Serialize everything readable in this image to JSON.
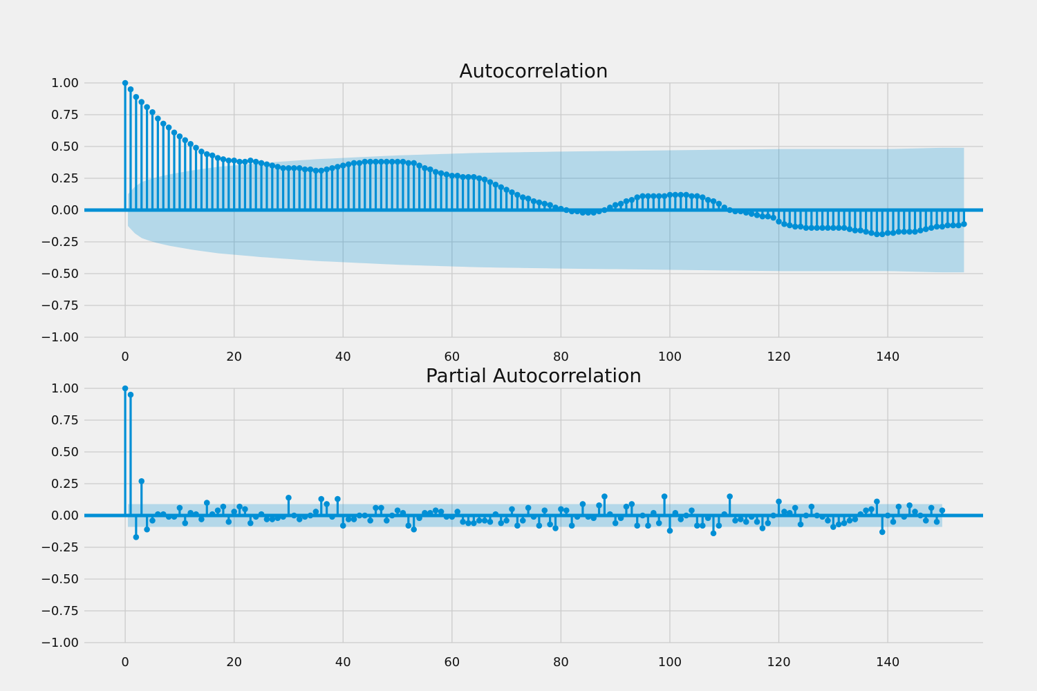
{
  "chart_data": [
    {
      "type": "stem",
      "title": "Autocorrelation",
      "xlabel": "",
      "ylabel": "",
      "xlim": [
        -7.5,
        157.5
      ],
      "ylim": [
        -1.0,
        1.0
      ],
      "x_ticks": [
        0,
        20,
        40,
        60,
        80,
        100,
        120,
        140
      ],
      "x_tick_labels": [
        "0",
        "20",
        "40",
        "60",
        "80",
        "100",
        "120",
        "140"
      ],
      "y_ticks": [
        1.0,
        0.75,
        0.5,
        0.25,
        0.0,
        -0.25,
        -0.5,
        -0.75,
        -1.0
      ],
      "y_tick_labels": [
        "1.00",
        "0.75",
        "0.50",
        "0.25",
        "0.00",
        "−0.25",
        "−0.50",
        "−0.75",
        "−1.00"
      ],
      "grid": true,
      "series": [
        {
          "lags": [
            0,
            150
          ],
          "values": [
            1.0,
            0.95,
            0.89,
            0.85,
            0.81,
            0.77,
            0.72,
            0.68,
            0.65,
            0.61,
            0.58,
            0.55,
            0.52,
            0.49,
            0.46,
            0.44,
            0.43,
            0.41,
            0.4,
            0.39,
            0.39,
            0.38,
            0.38,
            0.39,
            0.38,
            0.37,
            0.36,
            0.35,
            0.34,
            0.33,
            0.33,
            0.33,
            0.33,
            0.32,
            0.32,
            0.31,
            0.31,
            0.32,
            0.33,
            0.34,
            0.35,
            0.36,
            0.37,
            0.37,
            0.38,
            0.38,
            0.38,
            0.38,
            0.38,
            0.38,
            0.38,
            0.38,
            0.37,
            0.37,
            0.35,
            0.33,
            0.32,
            0.3,
            0.29,
            0.28,
            0.27,
            0.27,
            0.26,
            0.26,
            0.26,
            0.25,
            0.24,
            0.22,
            0.2,
            0.18,
            0.16,
            0.14,
            0.12,
            0.1,
            0.09,
            0.07,
            0.06,
            0.05,
            0.04,
            0.02,
            0.01,
            0.0,
            -0.01,
            -0.01,
            -0.02,
            -0.02,
            -0.02,
            -0.01,
            0.0,
            0.02,
            0.04,
            0.05,
            0.07,
            0.08,
            0.1,
            0.11,
            0.11,
            0.11,
            0.11,
            0.11,
            0.12,
            0.12,
            0.12,
            0.12,
            0.11,
            0.11,
            0.1,
            0.08,
            0.07,
            0.05,
            0.02,
            0.0,
            -0.01,
            -0.01,
            -0.02,
            -0.03,
            -0.04,
            -0.05,
            -0.05,
            -0.06,
            -0.09,
            -0.11,
            -0.12,
            -0.13,
            -0.13,
            -0.14,
            -0.14,
            -0.14,
            -0.14,
            -0.14,
            -0.14,
            -0.14,
            -0.14,
            -0.15,
            -0.16,
            -0.16,
            -0.17,
            -0.18,
            -0.19,
            -0.19,
            -0.18,
            -0.18,
            -0.17,
            -0.17,
            -0.17,
            -0.17,
            -0.16,
            -0.15,
            -0.14,
            -0.13,
            -0.13,
            -0.12,
            -0.12,
            -0.12,
            -0.11
          ]
        }
      ],
      "confidence_band": {
        "lags": [
          0,
          1,
          2,
          3,
          5,
          8,
          12,
          17,
          25,
          35,
          50,
          65,
          80,
          100,
          120,
          140,
          150
        ],
        "upper": [
          0.09,
          0.16,
          0.19,
          0.22,
          0.25,
          0.28,
          0.31,
          0.34,
          0.37,
          0.4,
          0.43,
          0.45,
          0.46,
          0.47,
          0.48,
          0.48,
          0.49
        ]
      }
    },
    {
      "type": "stem",
      "title": "Partial Autocorrelation",
      "xlabel": "",
      "ylabel": "",
      "xlim": [
        -7.5,
        157.5
      ],
      "ylim": [
        -1.0,
        1.0
      ],
      "x_ticks": [
        0,
        20,
        40,
        60,
        80,
        100,
        120,
        140
      ],
      "x_tick_labels": [
        "0",
        "20",
        "40",
        "60",
        "80",
        "100",
        "120",
        "140"
      ],
      "y_ticks": [
        1.0,
        0.75,
        0.5,
        0.25,
        0.0,
        -0.25,
        -0.5,
        -0.75,
        -1.0
      ],
      "y_tick_labels": [
        "1.00",
        "0.75",
        "0.50",
        "0.25",
        "0.00",
        "−0.25",
        "−0.50",
        "−0.75",
        "−1.00"
      ],
      "grid": true,
      "series": [
        {
          "lags": [
            0,
            150
          ],
          "values": [
            1.0,
            0.95,
            -0.17,
            0.27,
            -0.11,
            -0.04,
            0.01,
            0.01,
            -0.01,
            -0.01,
            0.06,
            -0.06,
            0.02,
            0.01,
            -0.03,
            0.1,
            0.01,
            0.04,
            0.07,
            -0.05,
            0.03,
            0.07,
            0.05,
            -0.06,
            -0.01,
            0.01,
            -0.03,
            -0.03,
            -0.02,
            -0.01,
            0.14,
            0.0,
            -0.03,
            -0.01,
            0.0,
            0.03,
            0.13,
            0.09,
            -0.01,
            0.13,
            -0.08,
            -0.03,
            -0.03,
            0.0,
            0.0,
            -0.04,
            0.06,
            0.06,
            -0.04,
            0.0,
            0.04,
            0.02,
            -0.08,
            -0.11,
            -0.02,
            0.02,
            0.02,
            0.04,
            0.03,
            -0.01,
            -0.01,
            0.03,
            -0.05,
            -0.06,
            -0.06,
            -0.04,
            -0.04,
            -0.05,
            0.01,
            -0.06,
            -0.04,
            0.05,
            -0.08,
            -0.04,
            0.06,
            -0.01,
            -0.08,
            0.04,
            -0.07,
            -0.1,
            0.05,
            0.04,
            -0.08,
            -0.01,
            0.09,
            -0.01,
            -0.02,
            0.08,
            0.15,
            0.01,
            -0.06,
            -0.02,
            0.07,
            0.09,
            -0.08,
            0.0,
            -0.08,
            0.02,
            -0.06,
            0.15,
            -0.12,
            0.02,
            -0.03,
            0.0,
            0.04,
            -0.08,
            -0.08,
            -0.02,
            -0.14,
            -0.08,
            0.01,
            0.15,
            -0.04,
            -0.03,
            -0.05,
            -0.01,
            -0.05,
            -0.1,
            -0.06,
            0.0,
            0.11,
            0.03,
            0.02,
            0.06,
            -0.07,
            0.0,
            0.07,
            0.0,
            -0.01,
            -0.04,
            -0.09,
            -0.07,
            -0.06,
            -0.04,
            -0.03,
            0.01,
            0.04,
            0.05,
            0.11,
            -0.13,
            0.0,
            -0.05,
            0.07,
            -0.01,
            0.08,
            0.03,
            0.0,
            -0.04,
            0.06,
            -0.05,
            0.04
          ]
        }
      ],
      "confidence_band": {
        "lags": [
          0,
          150
        ],
        "upper": [
          0.09,
          0.09
        ]
      }
    }
  ]
}
